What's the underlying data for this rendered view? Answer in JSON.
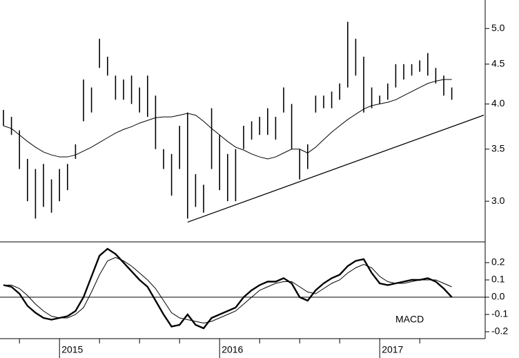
{
  "chart_data": [
    {
      "type": "ohlc",
      "log": true,
      "categories": [
        null,
        null,
        null,
        null,
        null,
        null,
        null,
        "2015",
        null,
        null,
        null,
        null,
        null,
        null,
        null,
        null,
        null,
        null,
        null,
        null,
        null,
        null,
        null,
        null,
        null,
        null,
        null,
        "2016",
        null,
        null,
        null,
        null,
        null,
        null,
        null,
        null,
        null,
        null,
        null,
        null,
        null,
        null,
        null,
        null,
        null,
        null,
        null,
        "2017",
        null,
        null,
        null,
        null,
        null,
        null,
        null,
        null,
        null
      ],
      "high": [
        3.93,
        3.85,
        3.7,
        3.4,
        3.3,
        3.35,
        3.2,
        3.3,
        3.35,
        3.55,
        4.3,
        4.2,
        4.85,
        4.6,
        4.35,
        4.3,
        4.35,
        4.2,
        4.35,
        4.1,
        3.5,
        3.45,
        3.75,
        3.9,
        3.25,
        3.15,
        3.95,
        3.65,
        3.45,
        3.5,
        3.75,
        3.8,
        3.85,
        3.95,
        3.85,
        4.2,
        4.0,
        3.5,
        3.55,
        4.1,
        4.1,
        4.15,
        4.25,
        5.1,
        4.85,
        4.6,
        4.2,
        4.1,
        4.25,
        4.5,
        4.5,
        4.5,
        4.55,
        4.65,
        4.45,
        4.35,
        4.2
      ],
      "low": [
        3.75,
        3.65,
        3.3,
        3.0,
        2.85,
        2.95,
        2.9,
        3.0,
        3.1,
        3.4,
        3.8,
        3.9,
        4.45,
        4.35,
        4.05,
        4.05,
        4.0,
        3.9,
        3.85,
        3.5,
        3.3,
        3.05,
        3.3,
        2.85,
        2.95,
        2.9,
        3.3,
        3.1,
        3.0,
        3.0,
        3.5,
        3.6,
        3.65,
        3.65,
        3.6,
        3.9,
        3.5,
        3.2,
        3.3,
        3.9,
        3.95,
        3.95,
        4.05,
        4.2,
        4.35,
        3.9,
        3.95,
        4.0,
        4.05,
        4.2,
        4.3,
        4.35,
        4.4,
        4.35,
        4.25,
        4.1,
        4.05
      ],
      "average": [
        3.75,
        3.72,
        3.65,
        3.58,
        3.52,
        3.47,
        3.44,
        3.42,
        3.42,
        3.44,
        3.48,
        3.52,
        3.57,
        3.62,
        3.67,
        3.71,
        3.74,
        3.78,
        3.81,
        3.84,
        3.85,
        3.85,
        3.87,
        3.89,
        3.87,
        3.8,
        3.72,
        3.65,
        3.58,
        3.52,
        3.49,
        3.45,
        3.42,
        3.4,
        3.42,
        3.46,
        3.5,
        3.5,
        3.46,
        3.52,
        3.6,
        3.68,
        3.75,
        3.82,
        3.88,
        3.94,
        3.98,
        4.0,
        4.02,
        4.05,
        4.1,
        4.15,
        4.2,
        4.25,
        4.28,
        4.3,
        4.3
      ],
      "trendline": {
        "from": [
          23,
          2.82
        ],
        "to": [
          60,
          3.87
        ]
      },
      "ylim": [
        2.66,
        5.44
      ],
      "yticks": [
        {
          "value": 3,
          "label": "3.0"
        },
        {
          "value": 3.5,
          "label": "3.5"
        },
        {
          "value": 4,
          "label": "4.0"
        },
        {
          "value": 4.5,
          "label": "4.5"
        },
        {
          "value": 5,
          "label": "5.0"
        }
      ],
      "color": "#000000"
    },
    {
      "type": "line",
      "annotation": "MACD",
      "series": [
        {
          "color": "#000000",
          "values": [
            0.07,
            0.06,
            0.02,
            -0.05,
            -0.09,
            -0.12,
            -0.13,
            -0.12,
            -0.11,
            -0.08,
            0.0,
            0.12,
            0.24,
            0.28,
            0.25,
            0.2,
            0.15,
            0.1,
            0.06,
            -0.02,
            -0.1,
            -0.17,
            -0.16,
            -0.1,
            -0.16,
            -0.18,
            -0.12,
            -0.1,
            -0.08,
            -0.06,
            0.0,
            0.04,
            0.07,
            0.09,
            0.09,
            0.11,
            0.08,
            0.0,
            -0.02,
            0.04,
            0.08,
            0.11,
            0.13,
            0.18,
            0.21,
            0.22,
            0.14,
            0.08,
            0.07,
            0.08,
            0.09,
            0.1,
            0.1,
            0.11,
            0.09,
            0.05,
            0.0
          ]
        },
        {
          "color": "#000000",
          "values": [
            0.07,
            0.07,
            0.05,
            0.01,
            -0.04,
            -0.08,
            -0.11,
            -0.12,
            -0.12,
            -0.1,
            -0.06,
            0.03,
            0.13,
            0.21,
            0.23,
            0.21,
            0.18,
            0.14,
            0.1,
            0.05,
            -0.02,
            -0.09,
            -0.12,
            -0.13,
            -0.14,
            -0.15,
            -0.14,
            -0.12,
            -0.1,
            -0.08,
            -0.04,
            0.0,
            0.04,
            0.06,
            0.08,
            0.09,
            0.09,
            0.06,
            0.03,
            0.02,
            0.05,
            0.08,
            0.1,
            0.14,
            0.17,
            0.19,
            0.17,
            0.12,
            0.09,
            0.08,
            0.08,
            0.09,
            0.1,
            0.1,
            0.1,
            0.08,
            0.06
          ]
        }
      ],
      "ylim": [
        -0.24,
        0.32
      ],
      "yticks": [
        -0.2,
        -0.1,
        {
          "value": 0,
          "label": "0.0"
        },
        0.1,
        0.2
      ]
    }
  ]
}
